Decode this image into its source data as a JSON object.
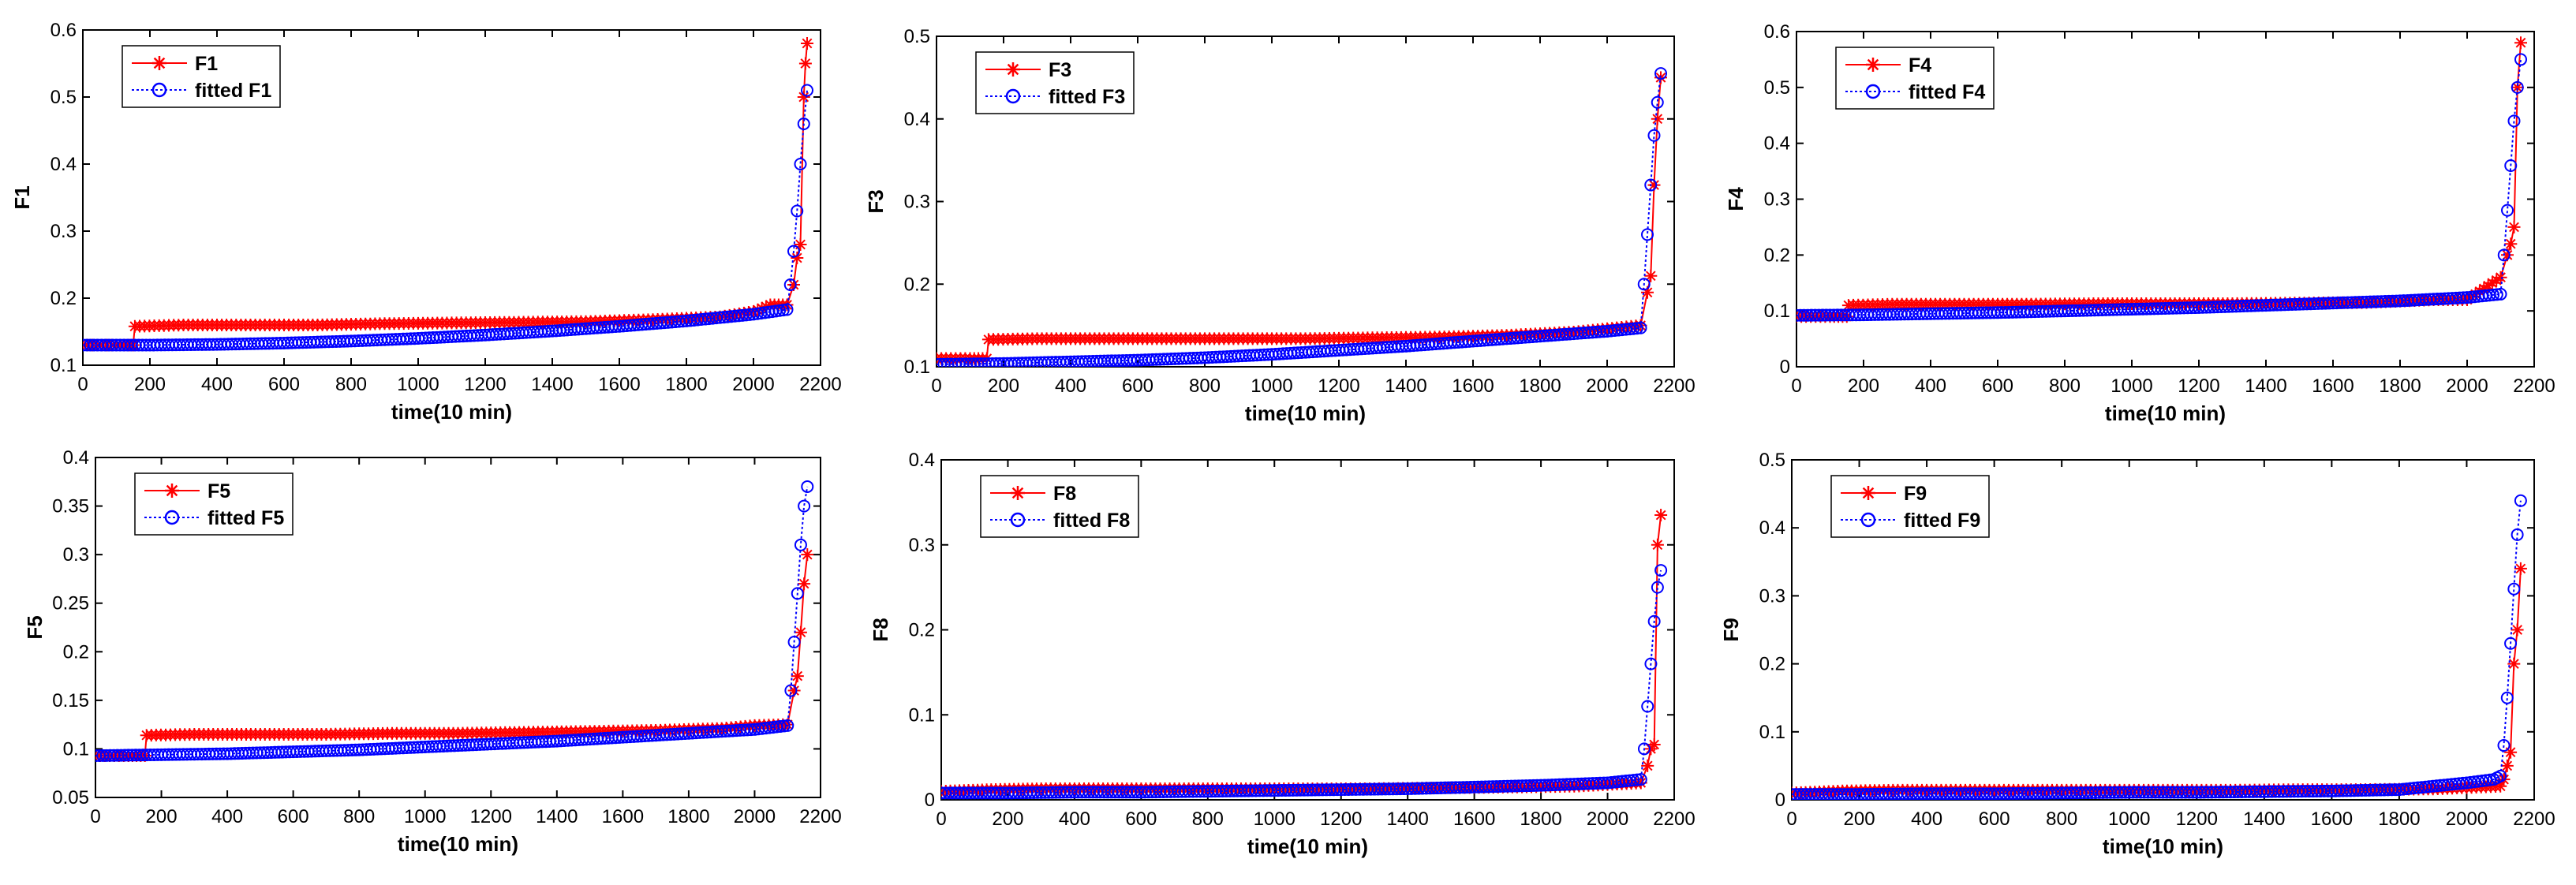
{
  "chart_data": [
    {
      "type": "line",
      "title": "",
      "xlabel": "time(10 min)",
      "ylabel": "F1",
      "xlim": [
        0,
        2200
      ],
      "ylim": [
        0.1,
        0.6
      ],
      "xticks": [
        "0",
        "200",
        "400",
        "600",
        "800",
        "1000",
        "1200",
        "1400",
        "1600",
        "1800",
        "2000",
        "2200"
      ],
      "yticks": [
        "0.1",
        "0.2",
        "0.3",
        "0.4",
        "0.5",
        "0.6"
      ],
      "legend": "top-left",
      "series": [
        {
          "name": "F1",
          "color": "#ff0000",
          "marker": "star",
          "line": "solid",
          "x": [
            0,
            100,
            150,
            155,
            300,
            500,
            700,
            900,
            1100,
            1300,
            1500,
            1700,
            1900,
            2000,
            2050,
            2100,
            2120,
            2130,
            2140,
            2150,
            2155,
            2160
          ],
          "y": [
            0.13,
            0.13,
            0.13,
            0.158,
            0.16,
            0.16,
            0.16,
            0.162,
            0.163,
            0.164,
            0.165,
            0.168,
            0.172,
            0.18,
            0.19,
            0.19,
            0.22,
            0.26,
            0.28,
            0.5,
            0.55,
            0.58
          ]
        },
        {
          "name": "fitted F1",
          "color": "#0000ff",
          "marker": "circle",
          "line": "dotted",
          "x": [
            0,
            200,
            400,
            600,
            800,
            1000,
            1200,
            1400,
            1600,
            1800,
            2000,
            2100,
            2110,
            2120,
            2130,
            2140,
            2150,
            2160
          ],
          "y": [
            0.13,
            0.13,
            0.131,
            0.133,
            0.136,
            0.14,
            0.145,
            0.151,
            0.158,
            0.166,
            0.176,
            0.183,
            0.22,
            0.27,
            0.33,
            0.4,
            0.46,
            0.51
          ]
        }
      ]
    },
    {
      "type": "line",
      "title": "",
      "xlabel": "time(10 min)",
      "ylabel": "F3",
      "xlim": [
        0,
        2200
      ],
      "ylim": [
        0.1,
        0.5
      ],
      "xticks": [
        "0",
        "200",
        "400",
        "600",
        "800",
        "1000",
        "1200",
        "1400",
        "1600",
        "1800",
        "2000",
        "2200"
      ],
      "yticks": [
        "0.1",
        "0.2",
        "0.3",
        "0.4",
        "0.5"
      ],
      "legend": "top-left",
      "series": [
        {
          "name": "F3",
          "color": "#ff0000",
          "marker": "star",
          "line": "solid",
          "x": [
            0,
            100,
            150,
            155,
            300,
            500,
            700,
            900,
            1100,
            1300,
            1500,
            1700,
            1900,
            2000,
            2100,
            2120,
            2130,
            2140,
            2150,
            2160
          ],
          "y": [
            0.11,
            0.11,
            0.11,
            0.133,
            0.134,
            0.134,
            0.134,
            0.134,
            0.134,
            0.135,
            0.136,
            0.138,
            0.142,
            0.146,
            0.15,
            0.19,
            0.21,
            0.32,
            0.4,
            0.45
          ]
        },
        {
          "name": "fitted F3",
          "color": "#0000ff",
          "marker": "circle",
          "line": "dotted",
          "x": [
            0,
            200,
            400,
            600,
            800,
            1000,
            1200,
            1400,
            1600,
            1800,
            2000,
            2100,
            2110,
            2120,
            2130,
            2140,
            2150,
            2160
          ],
          "y": [
            0.103,
            0.104,
            0.106,
            0.108,
            0.111,
            0.115,
            0.12,
            0.125,
            0.131,
            0.137,
            0.143,
            0.147,
            0.2,
            0.26,
            0.32,
            0.38,
            0.42,
            0.455
          ]
        }
      ]
    },
    {
      "type": "line",
      "title": "",
      "xlabel": "time(10 min)",
      "ylabel": "F4",
      "xlim": [
        0,
        2200
      ],
      "ylim": [
        0,
        0.6
      ],
      "xticks": [
        "0",
        "200",
        "400",
        "600",
        "800",
        "1000",
        "1200",
        "1400",
        "1600",
        "1800",
        "2000",
        "2200"
      ],
      "yticks": [
        "0",
        "0.1",
        "0.2",
        "0.3",
        "0.4",
        "0.5",
        "0.6"
      ],
      "legend": "top-left",
      "series": [
        {
          "name": "F4",
          "color": "#ff0000",
          "marker": "star",
          "line": "solid",
          "x": [
            0,
            100,
            150,
            155,
            300,
            500,
            700,
            900,
            1100,
            1300,
            1500,
            1700,
            1900,
            2000,
            2050,
            2100,
            2120,
            2130,
            2140,
            2150,
            2160
          ],
          "y": [
            0.09,
            0.09,
            0.09,
            0.11,
            0.112,
            0.112,
            0.112,
            0.113,
            0.113,
            0.113,
            0.114,
            0.115,
            0.12,
            0.12,
            0.14,
            0.16,
            0.2,
            0.22,
            0.25,
            0.5,
            0.58
          ]
        },
        {
          "name": "fitted F4",
          "color": "#0000ff",
          "marker": "circle",
          "line": "dotted",
          "x": [
            0,
            200,
            400,
            600,
            800,
            1000,
            1200,
            1400,
            1600,
            1800,
            2000,
            2100,
            2110,
            2120,
            2130,
            2140,
            2150,
            2160
          ],
          "y": [
            0.092,
            0.093,
            0.095,
            0.097,
            0.1,
            0.103,
            0.106,
            0.11,
            0.114,
            0.118,
            0.124,
            0.13,
            0.2,
            0.28,
            0.36,
            0.44,
            0.5,
            0.55
          ]
        }
      ]
    },
    {
      "type": "line",
      "title": "",
      "xlabel": "time(10 min)",
      "ylabel": "F5",
      "xlim": [
        0,
        2200
      ],
      "ylim": [
        0.05,
        0.4
      ],
      "xticks": [
        "0",
        "200",
        "400",
        "600",
        "800",
        "1000",
        "1200",
        "1400",
        "1600",
        "1800",
        "2000",
        "2200"
      ],
      "yticks": [
        "0.05",
        "0.1",
        "0.15",
        "0.2",
        "0.25",
        "0.3",
        "0.35",
        "0.4"
      ],
      "legend": "top-left",
      "series": [
        {
          "name": "F5",
          "color": "#ff0000",
          "marker": "star",
          "line": "solid",
          "x": [
            0,
            100,
            150,
            155,
            300,
            500,
            700,
            900,
            1100,
            1300,
            1500,
            1700,
            1900,
            2000,
            2100,
            2120,
            2130,
            2140,
            2150,
            2160
          ],
          "y": [
            0.093,
            0.093,
            0.093,
            0.114,
            0.115,
            0.115,
            0.115,
            0.116,
            0.116,
            0.117,
            0.118,
            0.119,
            0.121,
            0.124,
            0.125,
            0.16,
            0.175,
            0.22,
            0.27,
            0.3
          ]
        },
        {
          "name": "fitted F5",
          "color": "#0000ff",
          "marker": "circle",
          "line": "dotted",
          "x": [
            0,
            200,
            400,
            600,
            800,
            1000,
            1200,
            1400,
            1600,
            1800,
            2000,
            2100,
            2110,
            2120,
            2130,
            2140,
            2150,
            2160
          ],
          "y": [
            0.093,
            0.094,
            0.095,
            0.097,
            0.099,
            0.102,
            0.105,
            0.108,
            0.112,
            0.116,
            0.12,
            0.124,
            0.16,
            0.21,
            0.26,
            0.31,
            0.35,
            0.37
          ]
        }
      ]
    },
    {
      "type": "line",
      "title": "",
      "xlabel": "time(10 min)",
      "ylabel": "F8",
      "xlim": [
        0,
        2200
      ],
      "ylim": [
        0,
        0.4
      ],
      "xticks": [
        "0",
        "200",
        "400",
        "600",
        "800",
        "1000",
        "1200",
        "1400",
        "1600",
        "1800",
        "2000",
        "2200"
      ],
      "yticks": [
        "0",
        "0.1",
        "0.2",
        "0.3",
        "0.4"
      ],
      "legend": "top-left",
      "series": [
        {
          "name": "F8",
          "color": "#ff0000",
          "marker": "star",
          "line": "solid",
          "x": [
            0,
            150,
            300,
            500,
            700,
            900,
            1100,
            1300,
            1500,
            1700,
            1900,
            2000,
            2100,
            2120,
            2130,
            2140,
            2150,
            2160
          ],
          "y": [
            0.01,
            0.012,
            0.013,
            0.013,
            0.013,
            0.013,
            0.013,
            0.013,
            0.014,
            0.015,
            0.016,
            0.018,
            0.02,
            0.04,
            0.06,
            0.065,
            0.3,
            0.335
          ]
        },
        {
          "name": "fitted F8",
          "color": "#0000ff",
          "marker": "circle",
          "line": "dotted",
          "x": [
            0,
            200,
            400,
            600,
            800,
            1000,
            1200,
            1400,
            1600,
            1800,
            2000,
            2100,
            2110,
            2120,
            2130,
            2140,
            2150,
            2160
          ],
          "y": [
            0.008,
            0.008,
            0.009,
            0.009,
            0.01,
            0.011,
            0.012,
            0.013,
            0.015,
            0.017,
            0.02,
            0.024,
            0.06,
            0.11,
            0.16,
            0.21,
            0.25,
            0.27
          ]
        }
      ]
    },
    {
      "type": "line",
      "title": "",
      "xlabel": "time(10 min)",
      "ylabel": "F9",
      "xlim": [
        0,
        2200
      ],
      "ylim": [
        0,
        0.5
      ],
      "xticks": [
        "0",
        "200",
        "400",
        "600",
        "800",
        "1000",
        "1200",
        "1400",
        "1600",
        "1800",
        "2000",
        "2200"
      ],
      "yticks": [
        "0",
        "0.1",
        "0.2",
        "0.3",
        "0.4",
        "0.5"
      ],
      "legend": "top-left",
      "series": [
        {
          "name": "F9",
          "color": "#ff0000",
          "marker": "star",
          "line": "solid",
          "x": [
            0,
            150,
            300,
            500,
            700,
            900,
            1100,
            1300,
            1500,
            1700,
            1900,
            2000,
            2100,
            2110,
            2120,
            2130,
            2140,
            2150,
            2160
          ],
          "y": [
            0.01,
            0.013,
            0.014,
            0.014,
            0.014,
            0.014,
            0.014,
            0.014,
            0.015,
            0.015,
            0.016,
            0.018,
            0.02,
            0.03,
            0.05,
            0.07,
            0.2,
            0.25,
            0.34
          ]
        },
        {
          "name": "fitted F9",
          "color": "#0000ff",
          "marker": "circle",
          "line": "dotted",
          "x": [
            0,
            200,
            400,
            600,
            800,
            1000,
            1200,
            1400,
            1600,
            1800,
            1900,
            2000,
            2080,
            2100,
            2110,
            2120,
            2130,
            2140,
            2150,
            2160
          ],
          "y": [
            0.008,
            0.008,
            0.009,
            0.009,
            0.01,
            0.011,
            0.011,
            0.012,
            0.013,
            0.015,
            0.02,
            0.025,
            0.03,
            0.035,
            0.08,
            0.15,
            0.23,
            0.31,
            0.39,
            0.44
          ]
        }
      ]
    }
  ]
}
